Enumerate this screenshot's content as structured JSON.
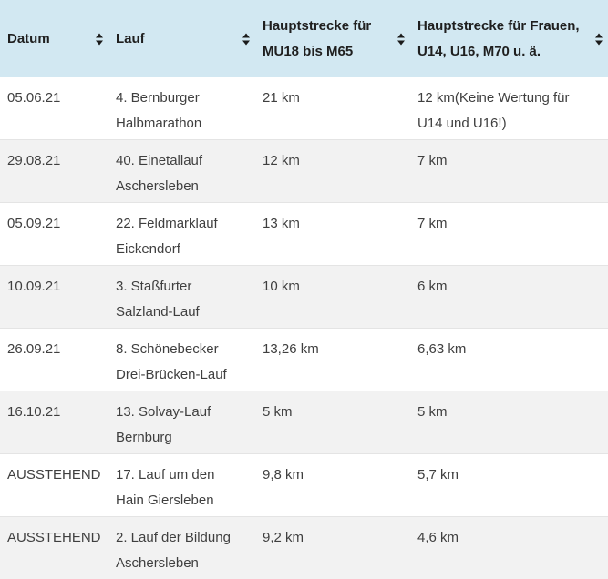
{
  "colors": {
    "header_bg": "#d2e8f2",
    "row_bg": "#ffffff",
    "row_alt_bg": "#f2f2f2",
    "row_border": "#e4e4e4",
    "text": "#3f3f3f",
    "header_text": "#1f1f1f",
    "sort_icon": "#1b1b1b"
  },
  "table": {
    "columns": [
      {
        "id": "datum",
        "label": "Datum",
        "sortable": true
      },
      {
        "id": "lauf",
        "label": "Lauf",
        "sortable": true
      },
      {
        "id": "hauptstrecke-mu18-m65",
        "label": "Hauptstrecke für\nMU18 bis M65",
        "sortable": true
      },
      {
        "id": "hauptstrecke-frauen",
        "label": "Hauptstrecke für Frauen,\nU14, U16, M70 u. ä.",
        "sortable": true
      }
    ],
    "rows": [
      [
        "05.06.21",
        "4. Bernburger\nHalbmarathon",
        "21 km",
        "12 km(Keine Wertung für\nU14 und U16!)"
      ],
      [
        "29.08.21",
        "40. Einetallauf\nAschersleben",
        "12 km",
        "7 km"
      ],
      [
        "05.09.21",
        "22. Feldmarklauf\nEickendorf",
        "13 km",
        "7 km"
      ],
      [
        "10.09.21",
        "3. Staßfurter\nSalzland-Lauf",
        "10 km",
        "6 km"
      ],
      [
        "26.09.21",
        "8. Schönebecker\nDrei-Brücken-Lauf",
        "13,26 km",
        "6,63 km"
      ],
      [
        "16.10.21",
        "13. Solvay-Lauf\nBernburg",
        "5 km",
        "5 km"
      ],
      [
        "AUSSTEHEND",
        "17. Lauf um den\nHain Giersleben",
        "9,8 km",
        "5,7 km"
      ],
      [
        "AUSSTEHEND",
        "2. Lauf der Bildung\nAschersleben",
        "9,2 km",
        "4,6 km"
      ]
    ]
  }
}
